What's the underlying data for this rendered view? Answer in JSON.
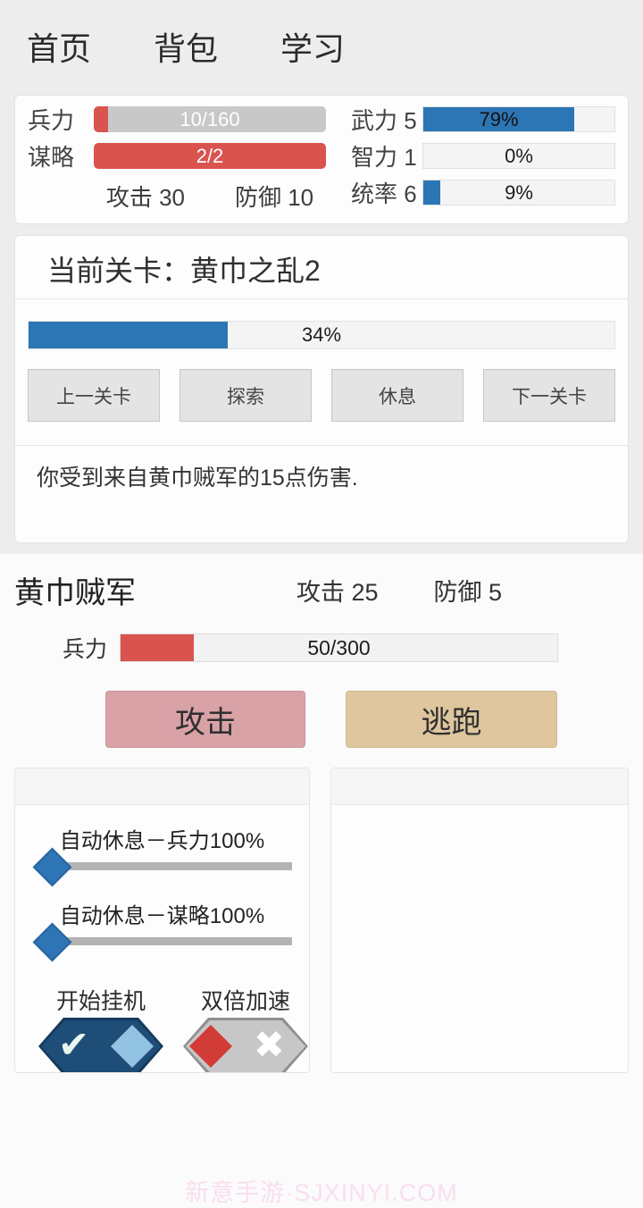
{
  "nav": {
    "home": "首页",
    "bag": "背包",
    "learn": "学习"
  },
  "player": {
    "troops_label": "兵力",
    "troops_text": "10/160",
    "troops_pct": 6.25,
    "strategy_label": "谋略",
    "strategy_text": "2/2",
    "strategy_pct": 100,
    "attack_text": "攻击 30",
    "defense_text": "防御 10",
    "stats": [
      {
        "label": "武力 5",
        "pct": 79,
        "text": "79%"
      },
      {
        "label": "智力 1",
        "pct": 0,
        "text": "0%"
      },
      {
        "label": "统率 6",
        "pct": 9,
        "text": "9%"
      }
    ]
  },
  "level": {
    "title": "当前关卡：黄巾之乱2",
    "progress_pct": 34,
    "progress_text": "34%",
    "buttons": {
      "prev": "上一关卡",
      "explore": "探索",
      "rest": "休息",
      "next": "下一关卡"
    },
    "message": "你受到来自黄巾贼军的15点伤害."
  },
  "enemy": {
    "name": "黄巾贼军",
    "attack_text": "攻击 25",
    "defense_text": "防御 5",
    "hp_label": "兵力",
    "hp_text": "50/300",
    "hp_pct": 16.7,
    "attack_button": "攻击",
    "flee_button": "逃跑"
  },
  "automation": {
    "slider_troops_label": "自动休息－兵力100%",
    "slider_troops_value": 0,
    "slider_strategy_label": "自动休息－谋略100%",
    "slider_strategy_value": 0,
    "idle_toggle_label": "开始挂机",
    "idle_toggle_state": "on",
    "speed_toggle_label": "双倍加速",
    "speed_toggle_state": "off",
    "check_glyph": "✔",
    "cross_glyph": "✖"
  },
  "watermark": "新意手游·SJXINYI.COM",
  "colors": {
    "accent_blue": "#2d76b5",
    "bar_red": "#d9534f",
    "bar_gray": "#c8c8c8",
    "attack_pink": "#d8a2a7",
    "flee_tan": "#dfc69e",
    "toggle_on_navy": "#1e4d78",
    "toggle_knob_lightblue": "#93c3e2",
    "toggle_off_gray": "#c7c7c7",
    "toggle_knob_red": "#d23c36",
    "watermark_pink": "#f9def0"
  }
}
